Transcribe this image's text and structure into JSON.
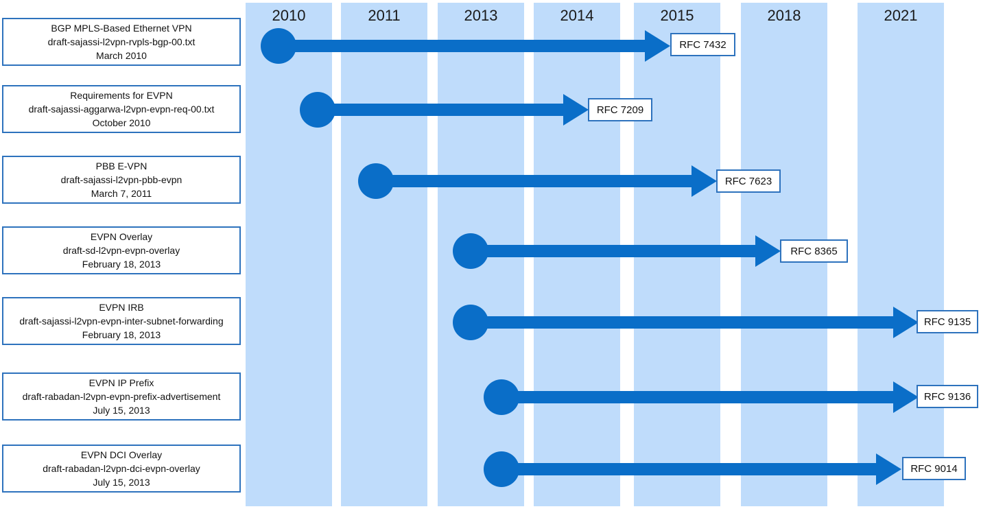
{
  "years": [
    "2010",
    "2011",
    "2013",
    "2014",
    "2015",
    "2018",
    "2021"
  ],
  "drafts": [
    {
      "title": "BGP MPLS-Based Ethernet VPN",
      "draft": "draft-sajassi-l2vpn-rvpls-bgp-00.txt",
      "date": "March 2010",
      "start_year": 2010,
      "rfc": "RFC 7432"
    },
    {
      "title": "Requirements for EVPN",
      "draft": "draft-sajassi-aggarwa-l2vpn-evpn-req-00.txt",
      "date": "October 2010",
      "start_year": 2010,
      "rfc": "RFC 7209"
    },
    {
      "title": "PBB E-VPN",
      "draft": "draft-sajassi-l2vpn-pbb-evpn",
      "date": "March 7, 2011",
      "start_year": 2011,
      "rfc": "RFC 7623"
    },
    {
      "title": "EVPN Overlay",
      "draft": "draft-sd-l2vpn-evpn-overlay",
      "date": "February 18, 2013",
      "start_year": 2013,
      "rfc": "RFC 8365"
    },
    {
      "title": "EVPN IRB",
      "draft": "draft-sajassi-l2vpn-evpn-inter-subnet-forwarding",
      "date": "February 18, 2013",
      "start_year": 2013,
      "rfc": "RFC 9135"
    },
    {
      "title": "EVPN IP Prefix",
      "draft": "draft-rabadan-l2vpn-evpn-prefix-advertisement",
      "date": "July 15, 2013",
      "start_year": 2013,
      "rfc": "RFC 9136"
    },
    {
      "title": "EVPN DCI Overlay",
      "draft": "draft-rabadan-l2vpn-dci-evpn-overlay",
      "date": "July 15, 2013",
      "start_year": 2013,
      "rfc": "RFC 9014"
    }
  ],
  "colors": {
    "column": "#bfdcfb",
    "arrow": "#0a6ec8",
    "box_border": "#2d72bd"
  }
}
